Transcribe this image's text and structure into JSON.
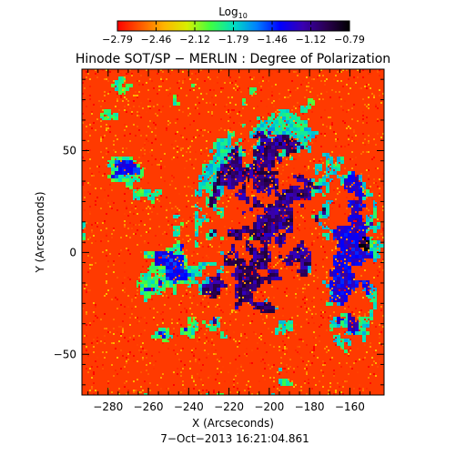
{
  "colorbar": {
    "label": "Log",
    "label_subscript": "10",
    "min": -2.79,
    "max": -0.79,
    "tick_labels": [
      "−2.79",
      "−2.46",
      "−2.12",
      "−1.79",
      "−1.46",
      "−1.12",
      "−0.79"
    ],
    "colors": [
      "#ff0000",
      "#ff5a00",
      "#ffb400",
      "#d8f000",
      "#40ff40",
      "#00e0c0",
      "#0080ff",
      "#0000ff",
      "#3a00b0",
      "#2a0050",
      "#000000"
    ]
  },
  "chart_data": {
    "type": "heatmap",
    "title": "Hinode SOT/SP − MERLIN : Degree of Polarization",
    "xlabel": "X (Arcseconds)",
    "ylabel": "Y (Arcseconds)",
    "xlim": [
      -293,
      -143
    ],
    "ylim": [
      -70,
      90
    ],
    "x_ticks": [
      -280,
      -260,
      -240,
      -220,
      -200,
      -180,
      -160
    ],
    "x_tick_labels": [
      "−280",
      "−260",
      "−240",
      "−220",
      "−200",
      "−180",
      "−160"
    ],
    "y_ticks": [
      -50,
      0,
      50
    ],
    "y_tick_labels": [
      "−50",
      "0",
      "50"
    ],
    "value_scale": "log10",
    "value_range": [
      -2.79,
      -0.79
    ],
    "background_level": -2.7,
    "network_level": -1.1,
    "spot_level": -0.85,
    "active_regions": [
      {
        "center": [
          -200,
          15
        ],
        "extent": [
          30,
          45
        ],
        "level": -1.1
      },
      {
        "center": [
          -215,
          -20
        ],
        "extent": [
          20,
          18
        ],
        "level": -1.1
      },
      {
        "center": [
          -160,
          0
        ],
        "extent": [
          12,
          40
        ],
        "level": -1.3
      },
      {
        "center": [
          -152,
          5
        ],
        "extent": [
          4,
          4
        ],
        "level": -0.85
      }
    ],
    "timestamp": "7−Oct−2013 16:21:04.861"
  }
}
